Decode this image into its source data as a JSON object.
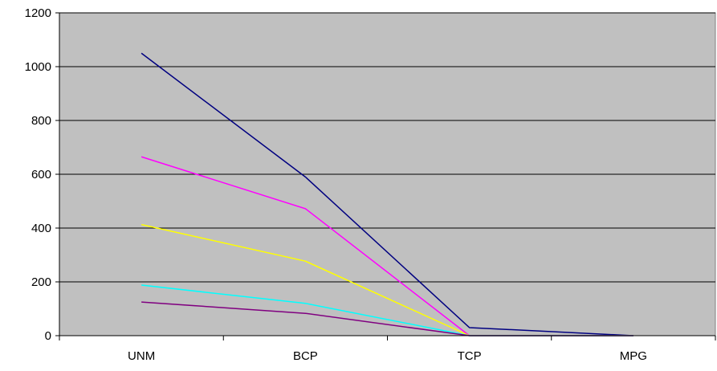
{
  "chart_data": {
    "type": "line",
    "title": "",
    "xlabel": "",
    "ylabel": "",
    "categories": [
      "UNM",
      "BCP",
      "TCP",
      "MPG"
    ],
    "ylim": [
      0,
      1200
    ],
    "yticks": [
      0,
      200,
      400,
      600,
      800,
      1000,
      1200
    ],
    "grid": true,
    "legend": "none",
    "plot_background": "#c0c0c0",
    "series": [
      {
        "color": "#000080",
        "values": [
          1050,
          590,
          30,
          0
        ]
      },
      {
        "color": "#ff00ff",
        "values": [
          665,
          472,
          0,
          0
        ]
      },
      {
        "color": "#ffff00",
        "values": [
          413,
          277,
          0,
          0
        ]
      },
      {
        "color": "#00ffff",
        "values": [
          188,
          120,
          0,
          0
        ]
      },
      {
        "color": "#800080",
        "values": [
          125,
          83,
          0,
          0
        ]
      }
    ]
  }
}
